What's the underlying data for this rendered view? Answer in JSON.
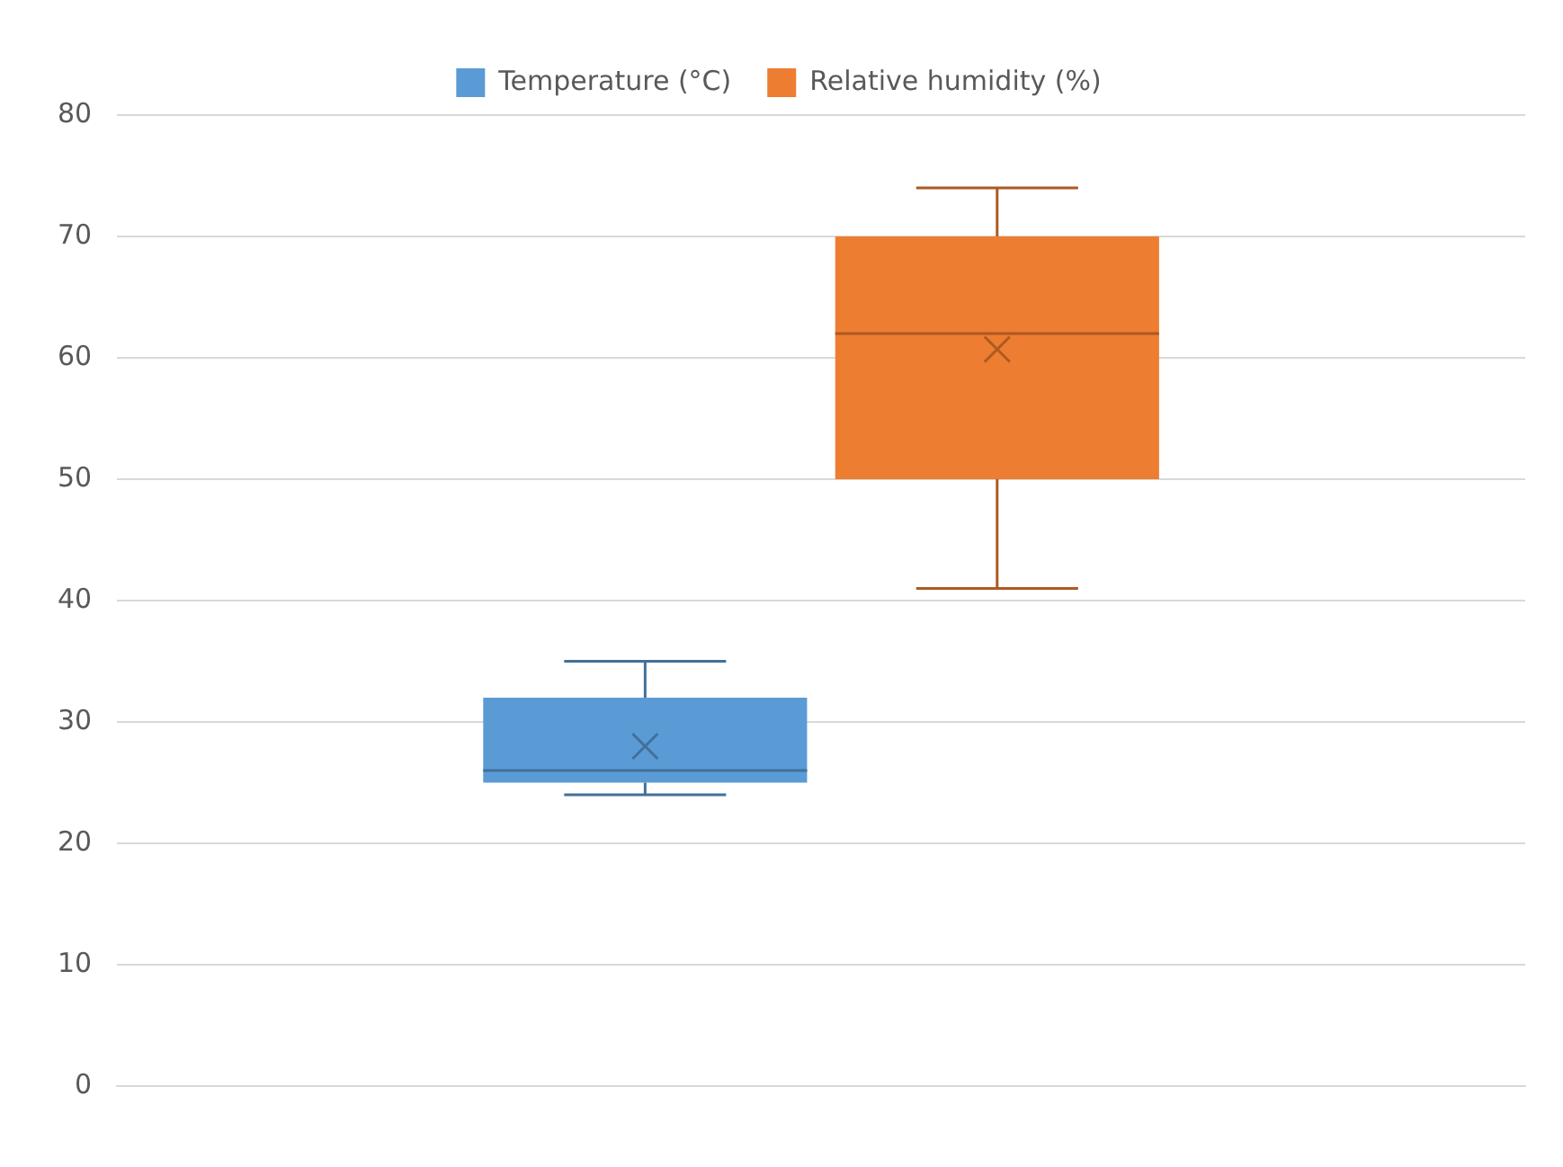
{
  "chart_data": {
    "type": "box",
    "categories": [
      null
    ],
    "series": [
      {
        "name": "Temperature (°C)",
        "color": "#5b9bd5",
        "boxes": [
          {
            "low": 24,
            "q1": 25,
            "median": 26,
            "q3": 32,
            "high": 35,
            "mean": 28
          }
        ]
      },
      {
        "name": "Relative humidity (%)",
        "color": "#ed7d31",
        "boxes": [
          {
            "low": 41,
            "q1": 50,
            "median": 62,
            "q3": 70,
            "high": 74,
            "mean": 60.7
          }
        ]
      }
    ],
    "ylim": [
      0,
      80
    ],
    "yticks": [
      0,
      10,
      20,
      30,
      40,
      50,
      60,
      70,
      80
    ],
    "grid": "y",
    "legend": "top"
  }
}
